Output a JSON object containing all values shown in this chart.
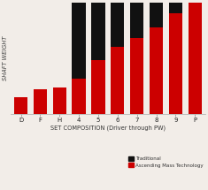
{
  "categories": [
    "D",
    "F",
    "H",
    "4",
    "5",
    "6",
    "7",
    "8",
    "9",
    "P"
  ],
  "red_values": [
    1.5,
    2.2,
    2.4,
    3.2,
    4.8,
    6.0,
    6.8,
    7.8,
    9.0,
    10.0
  ],
  "black_values": [
    0.0,
    0.0,
    0.0,
    6.8,
    5.2,
    4.0,
    3.2,
    2.2,
    1.0,
    0.0
  ],
  "red_color": "#cc0000",
  "black_color": "#111111",
  "bg_color": "#f2ede8",
  "xlabel": "SET COMPOSITION (Driver through PW)",
  "ylabel": "SHAFT WEIGHT",
  "legend_traditional": "Traditional",
  "legend_asc": "Ascending Mass Technology",
  "tick_fontsize": 5,
  "ylabel_fontsize": 4.8,
  "xlabel_fontsize": 4.8,
  "ylim": [
    0,
    10.0
  ]
}
